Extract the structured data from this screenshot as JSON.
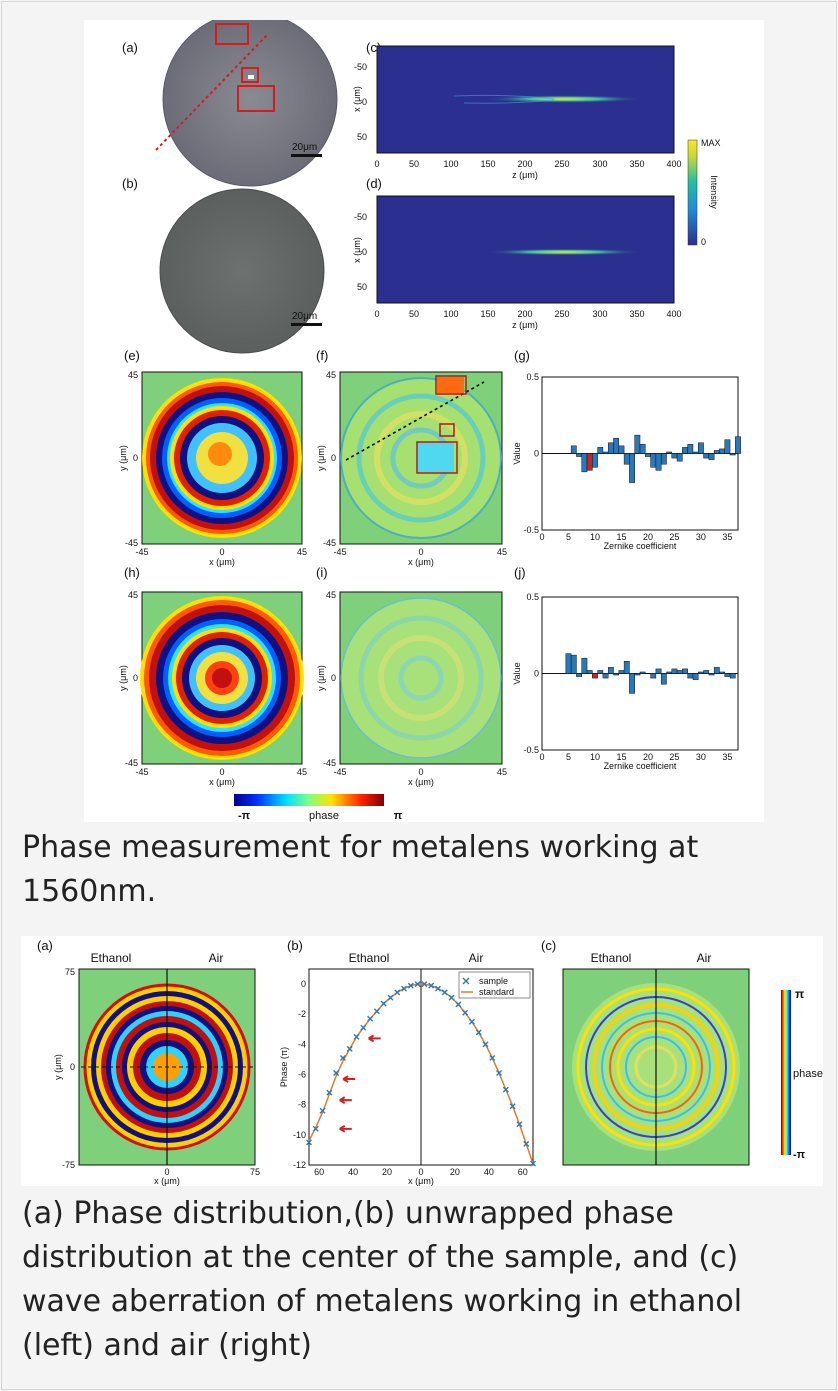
{
  "figure1": {
    "panel_labels": [
      "(a)",
      "(b)",
      "(c)",
      "(d)",
      "(e)",
      "(f)",
      "(g)",
      "(h)",
      "(i)",
      "(j)"
    ],
    "scale_bar": "20μm",
    "intensity_colorbar": {
      "max": "MAX",
      "min": "0",
      "label": "Intensity"
    },
    "focus_plots": {
      "xlabel": "z (μm)",
      "ylabel": "x (μm)",
      "xticks": [
        "0",
        "50",
        "100",
        "150",
        "200",
        "250",
        "300",
        "350",
        "400"
      ],
      "yticks": [
        "-50",
        "0",
        "50"
      ]
    },
    "phase_maps": {
      "xlabel": "x (μm)",
      "ylabel": "y (μm)",
      "ticks": [
        "-45",
        "0",
        "45"
      ]
    },
    "phase_colorbar": {
      "min": "-π",
      "label": "phase",
      "max": "π"
    },
    "chart_data": [
      {
        "type": "bar",
        "panel": "(g)",
        "xlabel": "Zernike coefficient",
        "ylabel": "Value",
        "ylim": [
          -0.5,
          0.5
        ],
        "xlim": [
          0,
          37
        ],
        "xticks": [
          0,
          5,
          10,
          15,
          20,
          25,
          30,
          35
        ],
        "highlight_color": "#d32020",
        "bar_color": "#2a78b8",
        "x": [
          6,
          7,
          8,
          9,
          10,
          11,
          12,
          13,
          14,
          15,
          16,
          17,
          18,
          19,
          20,
          21,
          22,
          23,
          24,
          25,
          26,
          27,
          28,
          29,
          30,
          31,
          32,
          33,
          34,
          35,
          36,
          37
        ],
        "values": [
          0.05,
          -0.02,
          -0.12,
          -0.11,
          -0.09,
          0.04,
          0.01,
          0.07,
          0.1,
          0.05,
          -0.07,
          -0.19,
          0.12,
          0.06,
          -0.02,
          -0.09,
          -0.11,
          -0.07,
          0.01,
          -0.03,
          -0.05,
          0.04,
          0.06,
          0.01,
          0.07,
          -0.03,
          -0.04,
          0.02,
          0.03,
          0.09,
          -0.01,
          0.11
        ],
        "highlight_x": [
          9
        ]
      },
      {
        "type": "bar",
        "panel": "(j)",
        "xlabel": "Zernike coefficient",
        "ylabel": "Value",
        "ylim": [
          -0.5,
          0.5
        ],
        "xlim": [
          0,
          37
        ],
        "xticks": [
          0,
          5,
          10,
          15,
          20,
          25,
          30,
          35
        ],
        "highlight_color": "#d32020",
        "bar_color": "#2a78b8",
        "x": [
          5,
          6,
          7,
          8,
          9,
          10,
          11,
          12,
          13,
          14,
          15,
          16,
          17,
          18,
          19,
          20,
          21,
          22,
          23,
          24,
          25,
          26,
          27,
          28,
          29,
          30,
          31,
          32,
          33,
          34,
          35,
          36
        ],
        "values": [
          0.13,
          0.12,
          -0.02,
          0.1,
          0.02,
          -0.03,
          0.02,
          -0.03,
          0.04,
          -0.01,
          0.02,
          0.08,
          -0.13,
          -0.01,
          0.01,
          0.0,
          -0.03,
          0.03,
          -0.07,
          0.01,
          0.03,
          0.02,
          0.03,
          -0.03,
          -0.04,
          0.01,
          0.02,
          -0.01,
          0.04,
          0.01,
          -0.02,
          -0.03
        ],
        "highlight_x": [
          10
        ]
      }
    ]
  },
  "caption1": "Phase measurement for metalens working at 1560nm.",
  "figure2": {
    "panel_labels": [
      "(a)",
      "(b)",
      "(c)"
    ],
    "side_labels": {
      "left": "Ethanol",
      "right": "Air"
    },
    "map_axes": {
      "xlabel": "x (μm)",
      "ylabel": "y (μm)",
      "ticks": [
        "-75",
        "0",
        "75"
      ]
    },
    "colorbar": {
      "max": "π",
      "label": "phase",
      "min": "-π"
    },
    "chart_data": {
      "type": "scatter",
      "panel": "(b)",
      "xlabel": "x (μm)",
      "ylabel": "Phase (π)",
      "xticks": [
        "60",
        "40",
        "20",
        "0",
        "20",
        "40",
        "60"
      ],
      "yticks": [
        "0",
        "-2",
        "-4",
        "-6",
        "-8",
        "-10",
        "-12"
      ],
      "xlim": [
        -66,
        66
      ],
      "ylim": [
        -12,
        1
      ],
      "series": [
        {
          "name": "sample",
          "marker": "x",
          "color": "#2a78b8",
          "x": [
            -66,
            -62,
            -58,
            -54,
            -50,
            -46,
            -42,
            -38,
            -34,
            -30,
            -26,
            -22,
            -18,
            -14,
            -10,
            -6,
            -2,
            2,
            6,
            10,
            14,
            18,
            22,
            26,
            30,
            34,
            38,
            42,
            46,
            50,
            54,
            58,
            62,
            66
          ],
          "y": [
            -10.5,
            -9.6,
            -8.4,
            -7.2,
            -5.9,
            -4.9,
            -4.3,
            -3.5,
            -2.9,
            -2.3,
            -1.8,
            -1.3,
            -0.9,
            -0.55,
            -0.3,
            -0.1,
            0.0,
            0.0,
            -0.1,
            -0.3,
            -0.55,
            -0.9,
            -1.35,
            -1.9,
            -2.5,
            -3.2,
            -4.0,
            -4.9,
            -5.9,
            -7.0,
            -8.1,
            -9.3,
            -10.6,
            -11.9
          ]
        },
        {
          "name": "standard",
          "marker": "line",
          "color": "#e07b2b",
          "x": [
            -66,
            -62,
            -58,
            -54,
            -50,
            -46,
            -42,
            -38,
            -34,
            -30,
            -26,
            -22,
            -18,
            -14,
            -10,
            -6,
            -2,
            2,
            6,
            10,
            14,
            18,
            22,
            26,
            30,
            34,
            38,
            42,
            46,
            50,
            54,
            58,
            62,
            66
          ],
          "y": [
            -10.4,
            -9.5,
            -8.5,
            -7.3,
            -6.1,
            -5.1,
            -4.3,
            -3.5,
            -2.9,
            -2.3,
            -1.8,
            -1.3,
            -0.9,
            -0.55,
            -0.3,
            -0.1,
            0.0,
            0.0,
            -0.1,
            -0.3,
            -0.55,
            -0.9,
            -1.35,
            -1.9,
            -2.5,
            -3.2,
            -4.0,
            -4.9,
            -5.9,
            -7.0,
            -8.1,
            -9.3,
            -10.6,
            -11.9
          ]
        }
      ],
      "arrows": [
        {
          "x": -35,
          "y": -3.6
        },
        {
          "x": -50,
          "y": -6.3
        },
        {
          "x": -52,
          "y": -7.7
        },
        {
          "x": -52,
          "y": -9.6
        }
      ]
    }
  },
  "caption2": "(a) Phase distribution,(b) unwrapped phase distribution at the center of the sample, and (c) wave aberration of metalens working in ethanol (left) and air (right)",
  "colors": {
    "map_bg": "#7fd07a",
    "plot_bg": "#2b2f8f",
    "bar": "#2a78b8",
    "highlight": "#d32020",
    "arrow": "#d32020"
  }
}
